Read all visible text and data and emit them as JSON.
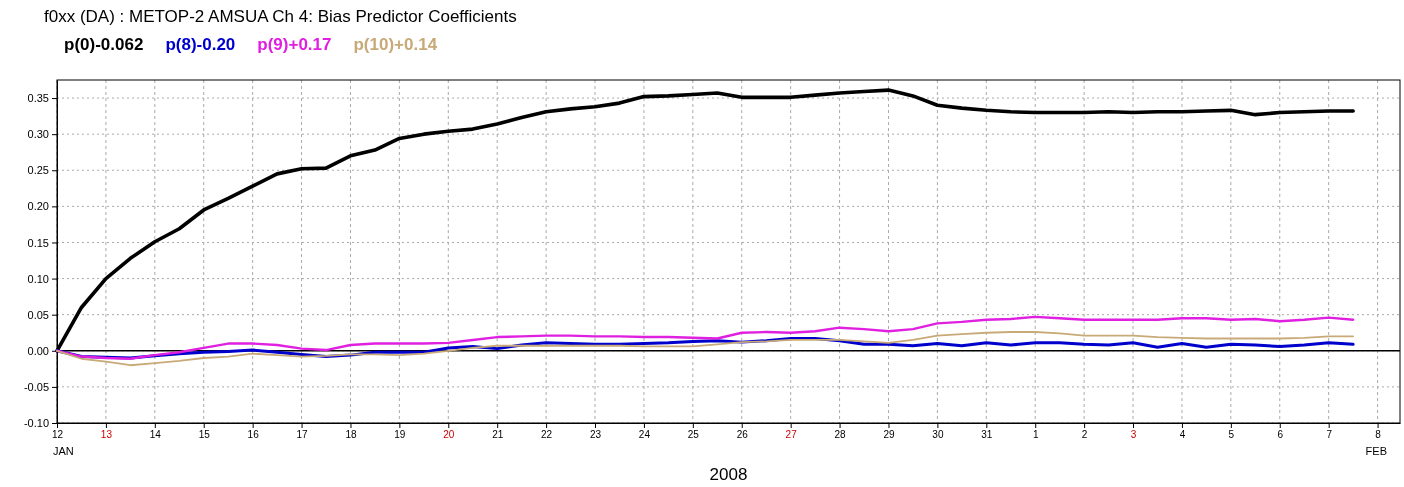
{
  "chart_data": {
    "type": "line",
    "title": "f0xx (DA)  : METOP-2  AMSUA  Ch 4: Bias Predictor Coefficients",
    "xlabel": "2008",
    "legend": "top left",
    "grid": true,
    "marker": "none",
    "line_style": "solid",
    "xlim": [
      "2008-01-12",
      "2008-02-08T11:00"
    ],
    "xticks": [
      {
        "value": "2008-01-12",
        "label": "12"
      },
      {
        "value": "2008-01-13",
        "label": "13"
      },
      {
        "value": "2008-01-14",
        "label": "14"
      },
      {
        "value": "2008-01-15",
        "label": "15"
      },
      {
        "value": "2008-01-16",
        "label": "16"
      },
      {
        "value": "2008-01-17",
        "label": "17"
      },
      {
        "value": "2008-01-18",
        "label": "18"
      },
      {
        "value": "2008-01-19",
        "label": "19"
      },
      {
        "value": "2008-01-20",
        "label": "20"
      },
      {
        "value": "2008-01-21",
        "label": "21"
      },
      {
        "value": "2008-01-22",
        "label": "22"
      },
      {
        "value": "2008-01-23",
        "label": "23"
      },
      {
        "value": "2008-01-24",
        "label": "24"
      },
      {
        "value": "2008-01-25",
        "label": "25"
      },
      {
        "value": "2008-01-26",
        "label": "26"
      },
      {
        "value": "2008-01-27",
        "label": "27"
      },
      {
        "value": "2008-01-28",
        "label": "28"
      },
      {
        "value": "2008-01-29",
        "label": "29"
      },
      {
        "value": "2008-01-30",
        "label": "30"
      },
      {
        "value": "2008-01-31",
        "label": "31"
      },
      {
        "value": "2008-02-01",
        "label": "1"
      },
      {
        "value": "2008-02-02",
        "label": "2"
      },
      {
        "value": "2008-02-03",
        "label": "3"
      },
      {
        "value": "2008-02-04",
        "label": "4"
      },
      {
        "value": "2008-02-05",
        "label": "5"
      },
      {
        "value": "2008-02-06",
        "label": "6"
      },
      {
        "value": "2008-02-07",
        "label": "7"
      },
      {
        "value": "2008-02-08",
        "label": "8"
      }
    ],
    "ylim": [
      -0.1,
      0.375
    ],
    "yticks": [
      {
        "value": -0.1,
        "label": "-0.10"
      },
      {
        "value": -0.05,
        "label": "-0.05"
      },
      {
        "value": 0,
        "label": "0.00"
      },
      {
        "value": 0.05,
        "label": "0.05"
      },
      {
        "value": 0.1,
        "label": "0.10"
      },
      {
        "value": 0.15,
        "label": "0.15"
      },
      {
        "value": 0.2,
        "label": "0.20"
      },
      {
        "value": 0.25,
        "label": "0.25"
      },
      {
        "value": 0.3,
        "label": "0.30"
      },
      {
        "value": 0.35,
        "label": "0.35"
      }
    ],
    "ref_lines": [
      {
        "axis": "y",
        "value": 0,
        "color": "#000000",
        "line_style": "solid"
      }
    ],
    "annotations": [
      "JAN",
      "FEB"
    ],
    "x": [
      "2008-01-12T00:00",
      "2008-01-12T12:00",
      "2008-01-13T00:00",
      "2008-01-13T12:00",
      "2008-01-14T00:00",
      "2008-01-14T12:00",
      "2008-01-15T00:00",
      "2008-01-15T12:00",
      "2008-01-16T00:00",
      "2008-01-16T12:00",
      "2008-01-17T00:00",
      "2008-01-17T12:00",
      "2008-01-18T00:00",
      "2008-01-18T12:00",
      "2008-01-19T00:00",
      "2008-01-19T12:00",
      "2008-01-20T00:00",
      "2008-01-20T12:00",
      "2008-01-21T00:00",
      "2008-01-21T12:00",
      "2008-01-22T00:00",
      "2008-01-22T12:00",
      "2008-01-23T00:00",
      "2008-01-23T12:00",
      "2008-01-24T00:00",
      "2008-01-24T12:00",
      "2008-01-25T00:00",
      "2008-01-25T12:00",
      "2008-01-26T00:00",
      "2008-01-26T12:00",
      "2008-01-27T00:00",
      "2008-01-27T12:00",
      "2008-01-28T00:00",
      "2008-01-28T12:00",
      "2008-01-29T00:00",
      "2008-01-29T12:00",
      "2008-01-30T00:00",
      "2008-01-30T12:00",
      "2008-01-31T00:00",
      "2008-01-31T12:00",
      "2008-02-01T00:00",
      "2008-02-01T12:00",
      "2008-02-02T00:00",
      "2008-02-02T12:00",
      "2008-02-03T00:00",
      "2008-02-03T12:00",
      "2008-02-04T00:00",
      "2008-02-04T12:00",
      "2008-02-05T00:00",
      "2008-02-05T12:00",
      "2008-02-06T00:00",
      "2008-02-06T12:00",
      "2008-02-07T00:00",
      "2008-02-07T12:00"
    ],
    "series": [
      {
        "name": "p(0)-0.062",
        "color": "#000000",
        "values": [
          0,
          0.06,
          0.1,
          0.128,
          0.151,
          0.169,
          0.195,
          0.211,
          0.228,
          0.245,
          0.252,
          0.253,
          0.27,
          0.278,
          0.294,
          0.3,
          0.304,
          0.307,
          0.314,
          0.323,
          0.331,
          0.335,
          0.338,
          0.343,
          0.352,
          0.353,
          0.355,
          0.357,
          0.351,
          0.351,
          0.351,
          0.354,
          0.357,
          0.359,
          0.361,
          0.353,
          0.34,
          0.336,
          0.333,
          0.331,
          0.33,
          0.33,
          0.33,
          0.331,
          0.33,
          0.331,
          0.331,
          0.332,
          0.333,
          0.327,
          0.33,
          0.331,
          0.332,
          0.332
        ]
      },
      {
        "name": "p(8)-0.20",
        "color": "#0000cc",
        "values": [
          0,
          -0.008,
          -0.009,
          -0.01,
          -0.007,
          -0.004,
          -0.002,
          -0.001,
          0.001,
          -0.002,
          -0.005,
          -0.008,
          -0.006,
          -0.002,
          -0.002,
          -0.002,
          0.004,
          0.006,
          0.003,
          0.008,
          0.011,
          0.01,
          0.009,
          0.009,
          0.01,
          0.011,
          0.013,
          0.014,
          0.012,
          0.014,
          0.017,
          0.017,
          0.014,
          0.009,
          0.009,
          0.007,
          0.01,
          0.007,
          0.011,
          0.008,
          0.011,
          0.011,
          0.009,
          0.008,
          0.011,
          0.005,
          0.01,
          0.005,
          0.009,
          0.008,
          0.006,
          0.008,
          0.011,
          0.009
        ]
      },
      {
        "name": "p(9)+0.17",
        "color": "#e020e0",
        "values": [
          0,
          -0.008,
          -0.01,
          -0.011,
          -0.006,
          -0.002,
          0.004,
          0.01,
          0.01,
          0.008,
          0.003,
          0.001,
          0.008,
          0.01,
          0.01,
          0.01,
          0.011,
          0.015,
          0.019,
          0.02,
          0.021,
          0.021,
          0.02,
          0.02,
          0.019,
          0.019,
          0.018,
          0.017,
          0.025,
          0.026,
          0.025,
          0.027,
          0.032,
          0.03,
          0.027,
          0.03,
          0.038,
          0.04,
          0.043,
          0.044,
          0.047,
          0.045,
          0.043,
          0.043,
          0.043,
          0.043,
          0.045,
          0.045,
          0.043,
          0.044,
          0.041,
          0.043,
          0.046,
          0.043
        ]
      },
      {
        "name": "p(10)+0.14",
        "color": "#c8aa78",
        "values": [
          0,
          -0.011,
          -0.015,
          -0.02,
          -0.017,
          -0.014,
          -0.01,
          -0.008,
          -0.004,
          -0.006,
          -0.008,
          -0.007,
          -0.005,
          -0.005,
          -0.006,
          -0.004,
          0,
          0.004,
          0.007,
          0.007,
          0.007,
          0.007,
          0.007,
          0.007,
          0.006,
          0.006,
          0.006,
          0.009,
          0.012,
          0.013,
          0.015,
          0.015,
          0.015,
          0.013,
          0.011,
          0.015,
          0.021,
          0.023,
          0.025,
          0.026,
          0.026,
          0.024,
          0.021,
          0.021,
          0.021,
          0.019,
          0.018,
          0.017,
          0.017,
          0.017,
          0.017,
          0.018,
          0.02,
          0.02
        ]
      }
    ]
  }
}
